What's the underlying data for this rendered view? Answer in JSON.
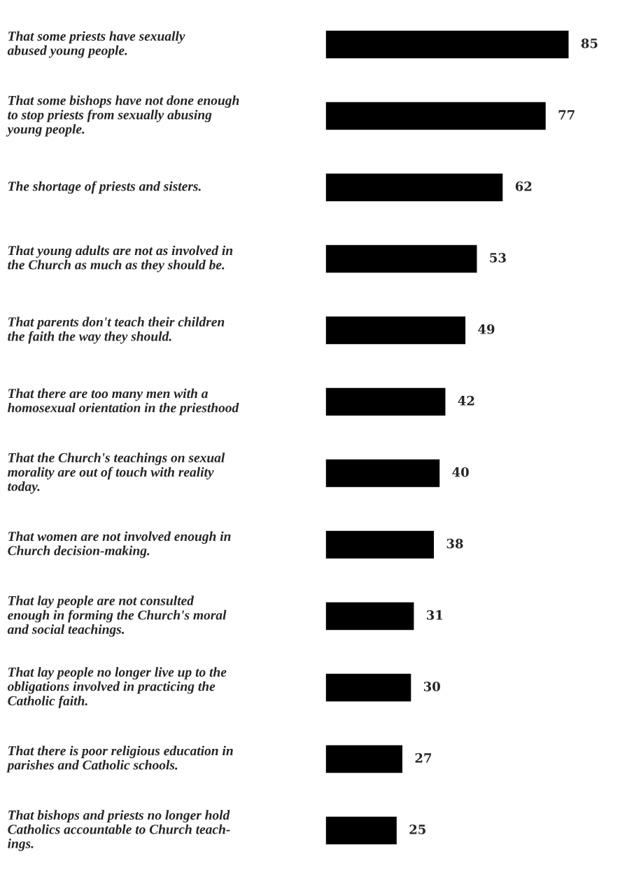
{
  "chart_data": {
    "type": "bar",
    "orientation": "horizontal",
    "data_labels": true,
    "color": "#000000",
    "categories": [
      "That some priests have sexually\nabused young people.",
      "That some bishops have not done enough\nto stop priests from sexually abusing\nyoung people.",
      "The shortage of priests and sisters.",
      "That young adults are not as involved in\nthe Church as much as they should be.",
      "That parents don't teach their children\nthe faith the way they should.",
      "That there are too many men with a\nhomosexual orientation in the priesthood",
      "That the Church's teachings on sexual\nmorality are out of touch with reality\ntoday.",
      "That women are not involved enough in\nChurch decision-making.",
      "That lay people are not consulted\nenough in forming the Church's moral\nand social teachings.",
      "That lay people no longer live up to the\nobligations involved in practicing the\nCatholic faith.",
      "That there is poor religious education in\nparishes and Catholic schools.",
      "That bishops and priests no longer hold\nCatholics accountable to Church teach-\nings."
    ],
    "values": [
      85,
      77,
      62,
      53,
      49,
      42,
      40,
      38,
      31,
      30,
      27,
      25
    ]
  }
}
